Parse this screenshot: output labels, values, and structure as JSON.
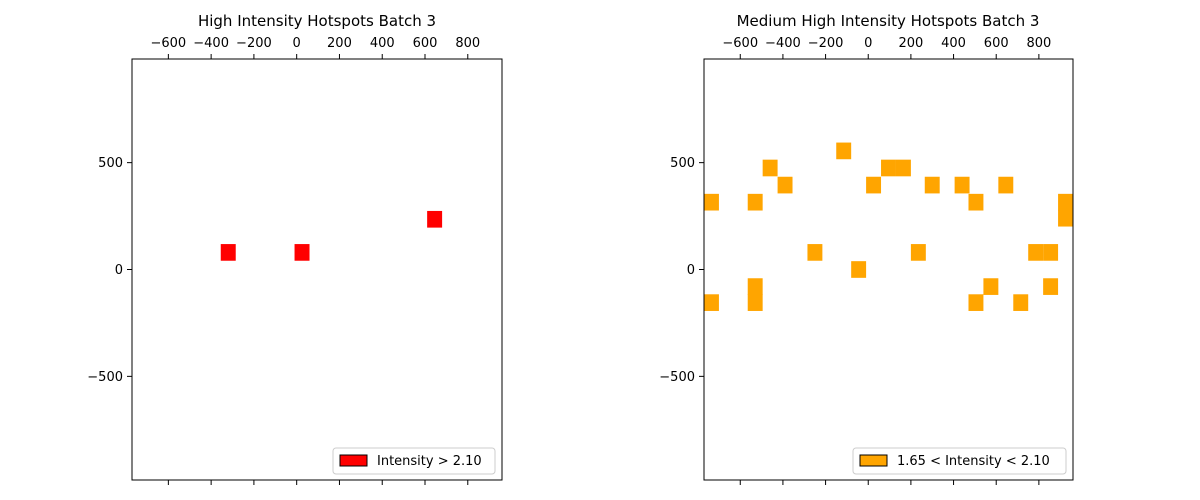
{
  "chart_data": [
    {
      "type": "heatmap",
      "title": "High Intensity Hotspots Batch 3",
      "xlabel": "",
      "ylabel": "",
      "xlim": [
        -770,
        960
      ],
      "ylim": [
        -985,
        985
      ],
      "x_ticks": [
        -600,
        -400,
        -200,
        0,
        200,
        400,
        600,
        800
      ],
      "x_tick_labels": [
        "−600",
        "−400",
        "−200",
        "0",
        "200",
        "400",
        "600",
        "800"
      ],
      "y_ticks": [
        500,
        0,
        -500
      ],
      "y_tick_labels": [
        "500",
        "0",
        "−500"
      ],
      "x_axis_position": "top",
      "cell_width": 70,
      "cell_height": 78,
      "cells": [
        {
          "x": -320,
          "y": 80
        },
        {
          "x": 25,
          "y": 80
        },
        {
          "x": 645,
          "y": 235
        }
      ],
      "color": "#ff0000",
      "grid": false,
      "legend": {
        "label": "Intensity > 2.10",
        "color": "#ff0000",
        "position": "bottom-right"
      }
    },
    {
      "type": "heatmap",
      "title": "Medium High Intensity Hotspots Batch 3",
      "xlabel": "",
      "ylabel": "",
      "xlim": [
        -770,
        960
      ],
      "ylim": [
        -985,
        985
      ],
      "x_ticks": [
        -600,
        -400,
        -200,
        0,
        200,
        400,
        600,
        800
      ],
      "x_tick_labels": [
        "−600",
        "−400",
        "−200",
        "0",
        "200",
        "400",
        "600",
        "800"
      ],
      "y_ticks": [
        500,
        0,
        -500
      ],
      "y_tick_labels": [
        "500",
        "0",
        "−500"
      ],
      "x_axis_position": "top",
      "cell_width": 70,
      "cell_height": 78,
      "cells": [
        {
          "x": -115,
          "y": 555
        },
        {
          "x": -460,
          "y": 475
        },
        {
          "x": 95,
          "y": 475
        },
        {
          "x": 165,
          "y": 475
        },
        {
          "x": -390,
          "y": 395
        },
        {
          "x": 25,
          "y": 395
        },
        {
          "x": 300,
          "y": 395
        },
        {
          "x": 440,
          "y": 395
        },
        {
          "x": 645,
          "y": 395
        },
        {
          "x": -735,
          "y": 315
        },
        {
          "x": -530,
          "y": 315
        },
        {
          "x": 505,
          "y": 315
        },
        {
          "x": 925,
          "y": 315
        },
        {
          "x": 925,
          "y": 240
        },
        {
          "x": -250,
          "y": 80
        },
        {
          "x": 235,
          "y": 80
        },
        {
          "x": 785,
          "y": 80
        },
        {
          "x": 855,
          "y": 80
        },
        {
          "x": -45,
          "y": 0
        },
        {
          "x": -530,
          "y": -80
        },
        {
          "x": 575,
          "y": -80
        },
        {
          "x": 855,
          "y": -80
        },
        {
          "x": -735,
          "y": -155
        },
        {
          "x": -530,
          "y": -155
        },
        {
          "x": 505,
          "y": -155
        },
        {
          "x": 715,
          "y": -155
        }
      ],
      "color": "#ffa500",
      "grid": false,
      "legend": {
        "label": "1.65 < Intensity < 2.10",
        "color": "#ffa500",
        "position": "bottom-right"
      }
    }
  ]
}
